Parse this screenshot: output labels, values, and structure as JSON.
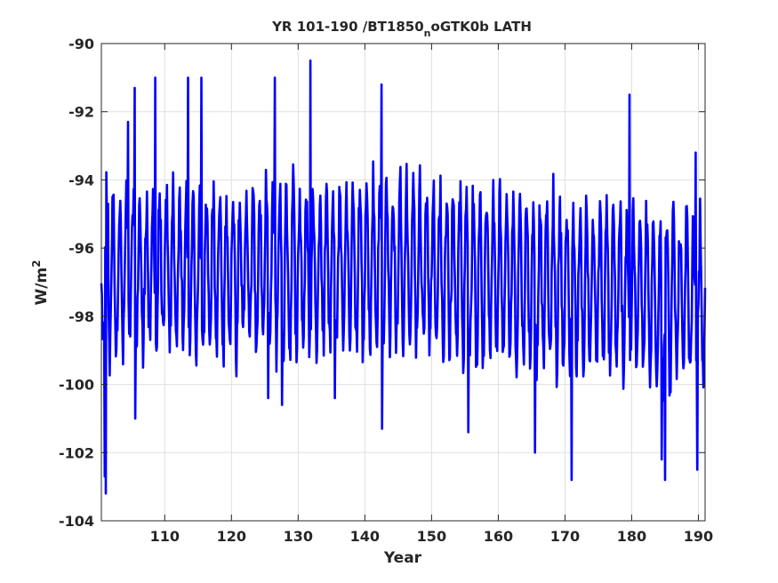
{
  "chart_data": {
    "type": "line",
    "title": "YR 101-190 /BT1850",
    "title_subscript": "n",
    "title_suffix": "oGTK0b LATH",
    "xlabel": "Year",
    "ylabel": "W/m",
    "ylabel_superscript": "2",
    "xlim": [
      100.5,
      191
    ],
    "ylim": [
      -104,
      -90
    ],
    "xticks": [
      110,
      120,
      130,
      140,
      150,
      160,
      170,
      180,
      190
    ],
    "yticks": [
      -104,
      -102,
      -100,
      -98,
      -96,
      -94,
      -92,
      -90
    ],
    "grid": true,
    "series": [
      {
        "color": "#0000ff",
        "samples_per_year": 12,
        "trend_start": -96.8,
        "trend_mid": -96.5,
        "trend_end": -97.6,
        "seasonal_amplitude": 2.2,
        "noise_amplitude": 0.6,
        "x_start": 100.5,
        "x_end": 191,
        "peaks": [
          {
            "x": 101.0,
            "y": -102.7
          },
          {
            "x": 101.2,
            "y": -103.2
          },
          {
            "x": 101.5,
            "y": -94.7
          },
          {
            "x": 104.5,
            "y": -92.3
          },
          {
            "x": 105.5,
            "y": -91.3
          },
          {
            "x": 105.6,
            "y": -101.0
          },
          {
            "x": 108.6,
            "y": -91.0
          },
          {
            "x": 113.5,
            "y": -91.0
          },
          {
            "x": 115.5,
            "y": -91.0
          },
          {
            "x": 125.5,
            "y": -100.4
          },
          {
            "x": 126.5,
            "y": -91.0
          },
          {
            "x": 127.6,
            "y": -100.6
          },
          {
            "x": 131.8,
            "y": -90.5
          },
          {
            "x": 135.5,
            "y": -100.4
          },
          {
            "x": 142.5,
            "y": -91.2
          },
          {
            "x": 142.6,
            "y": -101.3
          },
          {
            "x": 155.5,
            "y": -101.4
          },
          {
            "x": 165.5,
            "y": -102.0
          },
          {
            "x": 171.0,
            "y": -102.8
          },
          {
            "x": 179.7,
            "y": -91.5
          },
          {
            "x": 184.5,
            "y": -102.2
          },
          {
            "x": 185.0,
            "y": -102.8
          },
          {
            "x": 189.8,
            "y": -102.5
          },
          {
            "x": 189.6,
            "y": -93.2
          }
        ]
      }
    ]
  }
}
